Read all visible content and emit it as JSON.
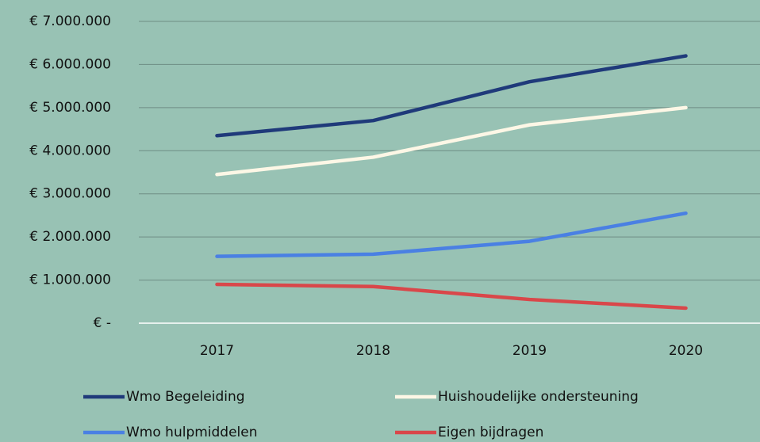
{
  "chart_data": {
    "type": "line",
    "categories": [
      "2017",
      "2018",
      "2019",
      "2020"
    ],
    "series": [
      {
        "name": "Wmo Begeleiding",
        "color": "#1f3a7a",
        "values": [
          4350000,
          4700000,
          5600000,
          6200000
        ]
      },
      {
        "name": "Huishoudelijke ondersteuning",
        "color": "#fdf7e6",
        "values": [
          3450000,
          3850000,
          4600000,
          5000000
        ]
      },
      {
        "name": "Wmo hulpmiddelen",
        "color": "#4a80e3",
        "values": [
          1550000,
          1600000,
          1900000,
          2550000
        ]
      },
      {
        "name": "Eigen bijdragen",
        "color": "#d9474a",
        "values": [
          900000,
          850000,
          550000,
          350000
        ]
      }
    ],
    "ylim": [
      0,
      7000000
    ],
    "yticks": [
      {
        "value": 0,
        "label": "€ -"
      },
      {
        "value": 1000000,
        "label": "€ 1.000.000"
      },
      {
        "value": 2000000,
        "label": "€ 2.000.000"
      },
      {
        "value": 3000000,
        "label": "€ 3.000.000"
      },
      {
        "value": 4000000,
        "label": "€ 4.000.000"
      },
      {
        "value": 5000000,
        "label": "€ 5.000.000"
      },
      {
        "value": 6000000,
        "label": "€ 6.000.000"
      },
      {
        "value": 7000000,
        "label": "€ 7.000.000"
      }
    ],
    "grid": true,
    "legend": "bottom"
  }
}
